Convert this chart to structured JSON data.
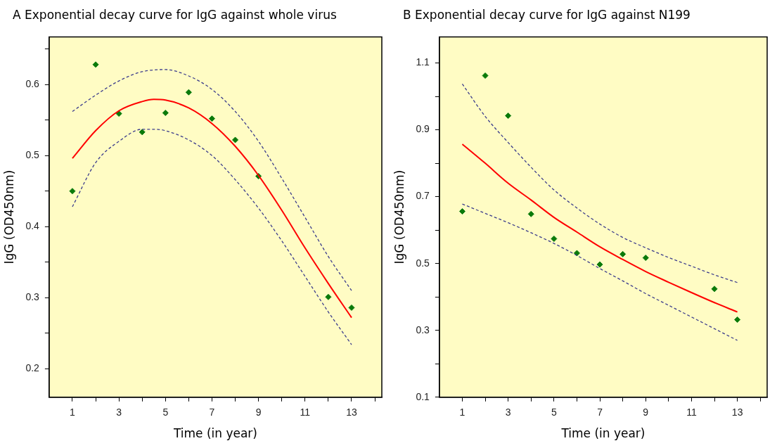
{
  "chart_data": [
    {
      "type": "scatter",
      "title": "A  Exponential decay curve for IgG against whole virus",
      "xlabel": "Time (in year)",
      "ylabel": "IgG (OD450nm)",
      "xlim": [
        0,
        14.3
      ],
      "ylim": [
        0.16,
        0.667
      ],
      "xticks": [
        1,
        {
          "value": 2,
          "label": null
        },
        3,
        {
          "value": 4,
          "label": null
        },
        5,
        {
          "value": 6,
          "label": null
        },
        7,
        {
          "value": 8,
          "label": null
        },
        9,
        {
          "value": 10,
          "label": null
        },
        11,
        {
          "value": 12,
          "label": null
        },
        13,
        {
          "value": 14,
          "label": null
        }
      ],
      "yticks": [
        0.2,
        {
          "value": 0.25,
          "label": null
        },
        0.3,
        {
          "value": 0.35,
          "label": null
        },
        0.4,
        {
          "value": 0.45,
          "label": null
        },
        0.5,
        {
          "value": 0.55,
          "label": null
        },
        0.6,
        {
          "value": 0.65,
          "label": null
        }
      ],
      "grid": false,
      "legend": false,
      "series": [
        {
          "type": "line",
          "color": "#3c3c8c",
          "line_style": "dashed",
          "x": [
            1,
            2,
            3,
            4,
            5,
            6,
            7,
            8,
            9,
            10,
            11,
            12,
            13
          ],
          "values": [
            0.562,
            0.585,
            0.605,
            0.618,
            0.621,
            0.612,
            0.593,
            0.562,
            0.52,
            0.468,
            0.413,
            0.358,
            0.31
          ]
        },
        {
          "type": "line",
          "color": "#3c3c8c",
          "line_style": "dashed",
          "x": [
            1,
            2,
            3,
            4,
            4.5,
            5,
            6,
            7,
            8,
            9,
            10,
            11,
            12,
            13
          ],
          "values": [
            0.428,
            0.49,
            0.52,
            0.537,
            0.537,
            0.535,
            0.522,
            0.5,
            0.466,
            0.426,
            0.38,
            0.33,
            0.28,
            0.234
          ]
        },
        {
          "type": "line",
          "color": "#ff0000",
          "line_style": "solid",
          "x": [
            1,
            2,
            3,
            4,
            4.5,
            5,
            6,
            7,
            8,
            9,
            10,
            11,
            12,
            13
          ],
          "values": [
            0.496,
            0.535,
            0.563,
            0.576,
            0.579,
            0.578,
            0.567,
            0.545,
            0.513,
            0.472,
            0.423,
            0.37,
            0.32,
            0.272
          ]
        },
        {
          "type": "scatter",
          "color": "#0a7a0a",
          "marker": "diamond",
          "x": [
            1,
            2,
            3,
            4,
            5,
            6,
            7,
            8,
            9,
            12,
            13
          ],
          "values": [
            0.45,
            0.628,
            0.559,
            0.533,
            0.56,
            0.589,
            0.552,
            0.522,
            0.471,
            0.301,
            0.286
          ]
        }
      ]
    },
    {
      "type": "scatter",
      "title": "B Exponential decay curve for IgG against N199",
      "xlabel": "Time (in year)",
      "ylabel": "IgG (OD450nm)",
      "xlim": [
        0,
        14.3
      ],
      "ylim": [
        0.1,
        1.178
      ],
      "xticks": [
        1,
        {
          "value": 2,
          "label": null
        },
        3,
        {
          "value": 4,
          "label": null
        },
        5,
        {
          "value": 6,
          "label": null
        },
        7,
        {
          "value": 8,
          "label": null
        },
        9,
        {
          "value": 10,
          "label": null
        },
        11,
        {
          "value": 12,
          "label": null
        },
        13,
        {
          "value": 14,
          "label": null
        }
      ],
      "yticks": [
        0.1,
        {
          "value": 0.2,
          "label": null
        },
        0.3,
        {
          "value": 0.4,
          "label": null
        },
        0.5,
        {
          "value": 0.6,
          "label": null
        },
        0.7,
        {
          "value": 0.8,
          "label": null
        },
        0.9,
        {
          "value": 1.0,
          "label": null
        },
        1.1
      ],
      "grid": false,
      "legend": false,
      "series": [
        {
          "type": "line",
          "color": "#3c3c8c",
          "line_style": "dashed",
          "x": [
            1,
            2,
            3,
            4,
            5,
            6,
            7,
            8,
            9,
            10,
            11,
            12,
            13
          ],
          "values": [
            1.037,
            0.94,
            0.862,
            0.788,
            0.72,
            0.666,
            0.618,
            0.578,
            0.547,
            0.518,
            0.492,
            0.466,
            0.443
          ]
        },
        {
          "type": "line",
          "color": "#3c3c8c",
          "line_style": "dashed",
          "x": [
            1,
            2,
            3,
            4,
            5,
            6,
            7,
            8,
            9,
            10,
            11,
            12,
            13
          ],
          "values": [
            0.678,
            0.65,
            0.622,
            0.592,
            0.56,
            0.524,
            0.485,
            0.448,
            0.41,
            0.375,
            0.34,
            0.305,
            0.27
          ]
        },
        {
          "type": "line",
          "color": "#ff0000",
          "line_style": "solid",
          "x": [
            1,
            2,
            3,
            4,
            5,
            6,
            7,
            8,
            9,
            10,
            11,
            12,
            13
          ],
          "values": [
            0.857,
            0.8,
            0.74,
            0.69,
            0.638,
            0.594,
            0.55,
            0.512,
            0.476,
            0.444,
            0.413,
            0.383,
            0.355
          ]
        },
        {
          "type": "scatter",
          "color": "#0a7a0a",
          "marker": "diamond",
          "x": [
            1,
            2,
            3,
            4,
            5,
            6,
            7,
            8,
            9,
            12,
            13
          ],
          "values": [
            0.656,
            1.062,
            0.942,
            0.648,
            0.574,
            0.531,
            0.497,
            0.528,
            0.517,
            0.424,
            0.332
          ]
        }
      ]
    }
  ]
}
